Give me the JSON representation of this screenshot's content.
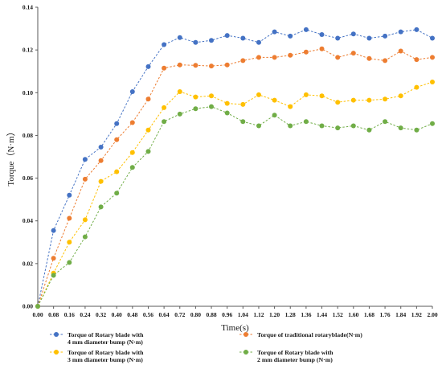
{
  "chart_data": {
    "type": "line",
    "xlabel": "Time(s)",
    "ylabel": "Torque（N·m）",
    "xlim": [
      0,
      2.0
    ],
    "ylim": [
      0,
      0.14
    ],
    "x_ticks": [
      "0.00",
      "0.08",
      "0.16",
      "0.24",
      "0.32",
      "0.40",
      "0.48",
      "0.56",
      "0.64",
      "0.72",
      "0.80",
      "0.88",
      "0.96",
      "1.04",
      "1.12",
      "1.20",
      "1.28",
      "1.36",
      "1.44",
      "1.52",
      "1.60",
      "1.68",
      "1.76",
      "1.84",
      "1.92",
      "2.00"
    ],
    "y_ticks": [
      "0.00",
      "0.02",
      "0.04",
      "0.06",
      "0.08",
      "0.10",
      "0.12",
      "0.14"
    ],
    "grid": false,
    "legend_position": "bottom",
    "x": [
      0.0,
      0.08,
      0.16,
      0.24,
      0.32,
      0.4,
      0.48,
      0.56,
      0.64,
      0.72,
      0.8,
      0.88,
      0.96,
      1.04,
      1.12,
      1.2,
      1.28,
      1.36,
      1.44,
      1.52,
      1.6,
      1.68,
      1.76,
      1.84,
      1.92,
      2.0
    ],
    "series": [
      {
        "name": "Torque of Rotary blade with 4 mm diameter bump (N·m)",
        "label_lines": [
          "Torque of Rotary blade with",
          "4 mm diameter bump (N·m)"
        ],
        "color": "#4472c4",
        "values": [
          0.0,
          0.0355,
          0.052,
          0.0688,
          0.0745,
          0.0855,
          0.1005,
          0.1122,
          0.1225,
          0.1258,
          0.1235,
          0.1245,
          0.1268,
          0.1255,
          0.1235,
          0.1285,
          0.1265,
          0.1295,
          0.1272,
          0.1255,
          0.1275,
          0.1255,
          0.1265,
          0.1285,
          0.1295,
          0.1255
        ]
      },
      {
        "name": "Torque of traditional rotaryblade(N·m)",
        "label_lines": [
          "Torque of traditional rotaryblade(N·m)"
        ],
        "color": "#ed7d31",
        "values": [
          0.0,
          0.0225,
          0.0412,
          0.0595,
          0.0682,
          0.078,
          0.086,
          0.097,
          0.1115,
          0.113,
          0.1128,
          0.1125,
          0.113,
          0.115,
          0.1165,
          0.1165,
          0.1175,
          0.119,
          0.1205,
          0.1165,
          0.1185,
          0.116,
          0.115,
          0.1195,
          0.1155,
          0.1165
        ]
      },
      {
        "name": "Torque of Rotary blade with 3 mm diameter bump (N·m)",
        "label_lines": [
          "Torque of Rotary blade with",
          "3 mm diameter bump (N·m)"
        ],
        "color": "#ffc000",
        "values": [
          0.0,
          0.0155,
          0.03,
          0.0405,
          0.0585,
          0.063,
          0.072,
          0.0825,
          0.093,
          0.1005,
          0.098,
          0.0985,
          0.095,
          0.0945,
          0.099,
          0.0965,
          0.0935,
          0.099,
          0.0985,
          0.0955,
          0.0965,
          0.0965,
          0.097,
          0.0985,
          0.1025,
          0.105
        ]
      },
      {
        "name": "Torque of Rotary blade with 2 mm diameter bump (N·m)",
        "label_lines": [
          "Torque of Rotary blade with",
          "2 mm diameter bump (N·m)"
        ],
        "color": "#70ad47",
        "values": [
          0.0,
          0.0145,
          0.0205,
          0.0325,
          0.0465,
          0.053,
          0.065,
          0.0725,
          0.0865,
          0.09,
          0.0925,
          0.0935,
          0.0905,
          0.0865,
          0.0845,
          0.0895,
          0.0845,
          0.0865,
          0.0845,
          0.0835,
          0.0845,
          0.0825,
          0.0865,
          0.0835,
          0.0825,
          0.0855
        ]
      }
    ]
  }
}
